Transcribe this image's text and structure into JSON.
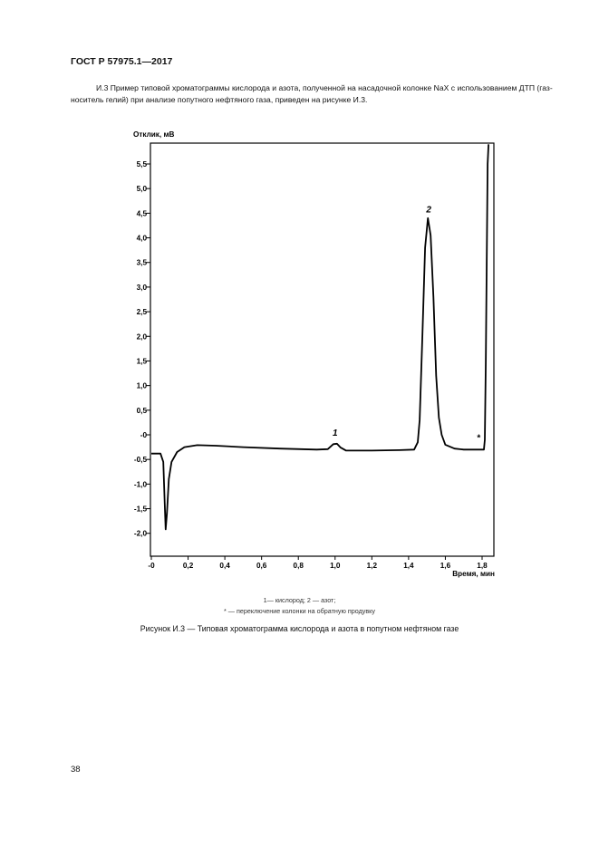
{
  "document": {
    "standard_id": "ГОСТ Р 57975.1—2017",
    "intro_text": "И.3 Пример типовой хроматограммы кислорода и азота, полученной на насадочной колонке NaX с использованием ДТП (газ-носитель гелий) при анализе попутного нефтяного газа, приведен на рисунке И.3.",
    "legend_line1": "1— кислород; 2 — азот;",
    "legend_line2": "* — переключение колонки на обратную продувку",
    "caption": "Рисунок И.3 — Типовая хроматограмма кислорода и азота в попутном нефтяном газе",
    "page_number": "38"
  },
  "chart_data": {
    "type": "line",
    "ylabel": "Отклик, мВ",
    "xlabel": "Время, мин",
    "xlim": [
      0,
      1.84
    ],
    "ylim": [
      -2.5,
      5.9
    ],
    "x_ticks": [
      {
        "v": 0,
        "label": "-0"
      },
      {
        "v": 0.2,
        "label": "0,2"
      },
      {
        "v": 0.4,
        "label": "0,4"
      },
      {
        "v": 0.6,
        "label": "0,6"
      },
      {
        "v": 0.8,
        "label": "0,8"
      },
      {
        "v": 1.0,
        "label": "1,0"
      },
      {
        "v": 1.2,
        "label": "1,2"
      },
      {
        "v": 1.4,
        "label": "1,4"
      },
      {
        "v": 1.6,
        "label": "1,6"
      },
      {
        "v": 1.8,
        "label": "1,8"
      }
    ],
    "y_ticks": [
      {
        "v": 5.5,
        "label": "5,5"
      },
      {
        "v": 5.0,
        "label": "5,0"
      },
      {
        "v": 4.5,
        "label": "4,5"
      },
      {
        "v": 4.0,
        "label": "4,0"
      },
      {
        "v": 3.5,
        "label": "3,5"
      },
      {
        "v": 3.0,
        "label": "3,0"
      },
      {
        "v": 2.5,
        "label": "2,5"
      },
      {
        "v": 2.0,
        "label": "2,0"
      },
      {
        "v": 1.5,
        "label": "1,5"
      },
      {
        "v": 1.0,
        "label": "1,0"
      },
      {
        "v": 0.5,
        "label": "0,5"
      },
      {
        "v": 0.0,
        "label": "-0"
      },
      {
        "v": -0.5,
        "label": "-0,5"
      },
      {
        "v": -1.0,
        "label": "-1,0"
      },
      {
        "v": -1.5,
        "label": "-1,5"
      },
      {
        "v": -2.0,
        "label": "-2,0"
      }
    ],
    "grid": false,
    "series": [
      {
        "points": [
          [
            0.0,
            -0.38
          ],
          [
            0.05,
            -0.38
          ],
          [
            0.065,
            -0.55
          ],
          [
            0.072,
            -1.3
          ],
          [
            0.078,
            -1.92
          ],
          [
            0.085,
            -1.6
          ],
          [
            0.095,
            -0.9
          ],
          [
            0.11,
            -0.55
          ],
          [
            0.14,
            -0.35
          ],
          [
            0.18,
            -0.25
          ],
          [
            0.25,
            -0.21
          ],
          [
            0.35,
            -0.22
          ],
          [
            0.5,
            -0.25
          ],
          [
            0.7,
            -0.28
          ],
          [
            0.9,
            -0.3
          ],
          [
            0.96,
            -0.29
          ],
          [
            0.99,
            -0.19
          ],
          [
            1.01,
            -0.18
          ],
          [
            1.03,
            -0.26
          ],
          [
            1.06,
            -0.32
          ],
          [
            1.2,
            -0.32
          ],
          [
            1.35,
            -0.31
          ],
          [
            1.43,
            -0.3
          ],
          [
            1.45,
            -0.15
          ],
          [
            1.46,
            0.3
          ],
          [
            1.475,
            2.0
          ],
          [
            1.49,
            3.8
          ],
          [
            1.505,
            4.4
          ],
          [
            1.52,
            4.05
          ],
          [
            1.535,
            2.8
          ],
          [
            1.55,
            1.2
          ],
          [
            1.565,
            0.35
          ],
          [
            1.58,
            0.0
          ],
          [
            1.6,
            -0.2
          ],
          [
            1.65,
            -0.28
          ],
          [
            1.7,
            -0.3
          ],
          [
            1.81,
            -0.3
          ],
          [
            1.815,
            -0.1
          ],
          [
            1.82,
            1.5
          ],
          [
            1.825,
            3.5
          ],
          [
            1.83,
            5.5
          ],
          [
            1.835,
            5.9
          ]
        ]
      }
    ],
    "annotations": [
      {
        "text": "1",
        "x": 1.0,
        "y": -0.02
      },
      {
        "text": "2",
        "x": 1.51,
        "y": 4.52
      },
      {
        "text": "*",
        "x": 1.78,
        "y": -0.12
      }
    ]
  }
}
